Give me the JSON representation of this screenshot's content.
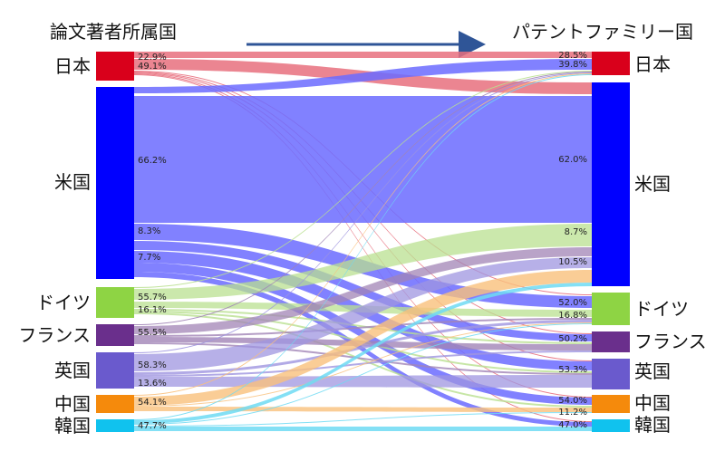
{
  "headers": {
    "left": "論文著者所属国",
    "right": "パテントファミリー国"
  },
  "countries": [
    {
      "key": "jp",
      "label": "日本",
      "color": "#d9001b"
    },
    {
      "key": "us",
      "label": "米国",
      "color": "#0000ff"
    },
    {
      "key": "de",
      "label": "ドイツ",
      "color": "#8ed444"
    },
    {
      "key": "fr",
      "label": "フランス",
      "color": "#6a2f8c"
    },
    {
      "key": "uk",
      "label": "英国",
      "color": "#6a5acd"
    },
    {
      "key": "cn",
      "label": "中国",
      "color": "#f58a0c"
    },
    {
      "key": "kr",
      "label": "韓国",
      "color": "#10c2ee"
    }
  ],
  "flow_colors": {
    "jp": "#e8707e",
    "us": "#6b6bff",
    "de": "#b9e090",
    "fr": "#a184b6",
    "uk": "#9f95e0",
    "cn": "#f9c07c",
    "kr": "#6fdaf3"
  },
  "left_percentages": [
    {
      "from": "jp",
      "value": "22.9%"
    },
    {
      "from": "jp",
      "value": "49.1%"
    },
    {
      "from": "us",
      "value": "66.2%"
    },
    {
      "from": "us",
      "value": "8.3%"
    },
    {
      "from": "us",
      "value": "7.7%"
    },
    {
      "from": "de",
      "value": "55.7%"
    },
    {
      "from": "de",
      "value": "16.1%"
    },
    {
      "from": "fr",
      "value": "55.5%"
    },
    {
      "from": "uk",
      "value": "58.3%"
    },
    {
      "from": "uk",
      "value": "13.6%"
    },
    {
      "from": "cn",
      "value": "54.1%"
    },
    {
      "from": "kr",
      "value": "47.7%"
    }
  ],
  "right_percentages": [
    {
      "to": "jp",
      "value": "28.5%"
    },
    {
      "to": "jp",
      "value": "39.8%"
    },
    {
      "to": "us",
      "value": "62.0%"
    },
    {
      "to": "us",
      "value": "8.7%"
    },
    {
      "to": "us",
      "value": "10.5%"
    },
    {
      "to": "de",
      "value": "52.0%"
    },
    {
      "to": "de",
      "value": "16.8%"
    },
    {
      "to": "fr",
      "value": "50.2%"
    },
    {
      "to": "uk",
      "value": "53.3%"
    },
    {
      "to": "cn",
      "value": "54.0%"
    },
    {
      "to": "cn",
      "value": "11.2%"
    },
    {
      "to": "kr",
      "value": "47.0%"
    }
  ]
}
